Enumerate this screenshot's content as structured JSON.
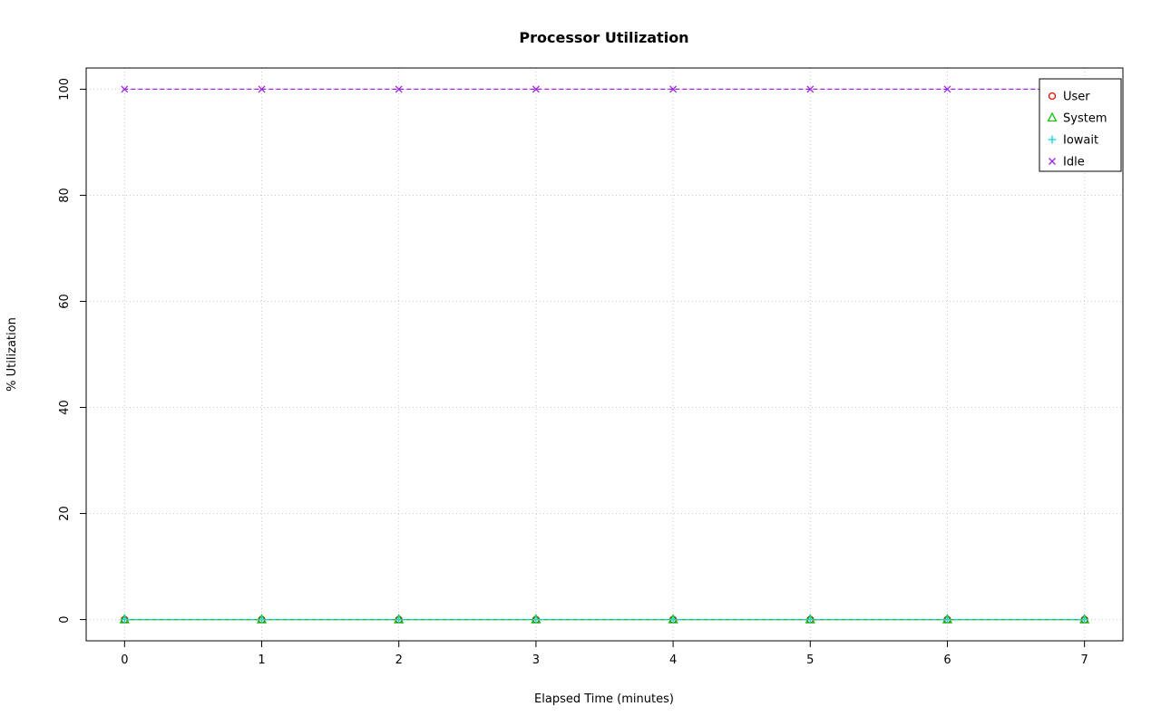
{
  "chart_data": {
    "type": "line",
    "title": "Processor Utilization",
    "xlabel": "Elapsed Time (minutes)",
    "ylabel": "% Utilization",
    "x": [
      0,
      1,
      2,
      3,
      4,
      5,
      6,
      7
    ],
    "xticks": [
      0,
      1,
      2,
      3,
      4,
      5,
      6,
      7
    ],
    "yticks": [
      0,
      20,
      40,
      60,
      80,
      100
    ],
    "xlim": [
      0,
      7
    ],
    "ylim": [
      0,
      100
    ],
    "grid": true,
    "grid_style": "dotted",
    "grid_color": "#c8c8c8",
    "line_style": "dashed",
    "legend_position": "top-right",
    "background": "#ffffff",
    "series": [
      {
        "name": "User",
        "marker": "circle",
        "color": "#ff0000",
        "values": [
          0,
          0,
          0,
          0,
          0,
          0,
          0,
          0
        ]
      },
      {
        "name": "System",
        "marker": "triangle",
        "color": "#00c800",
        "values": [
          0,
          0,
          0,
          0,
          0,
          0,
          0,
          0
        ]
      },
      {
        "name": "Iowait",
        "marker": "plus",
        "color": "#00dddd",
        "values": [
          0,
          0,
          0,
          0,
          0,
          0,
          0,
          0
        ]
      },
      {
        "name": "Idle",
        "marker": "x",
        "color": "#a020f0",
        "values": [
          100,
          100,
          100,
          100,
          100,
          100,
          100,
          100
        ]
      }
    ]
  }
}
